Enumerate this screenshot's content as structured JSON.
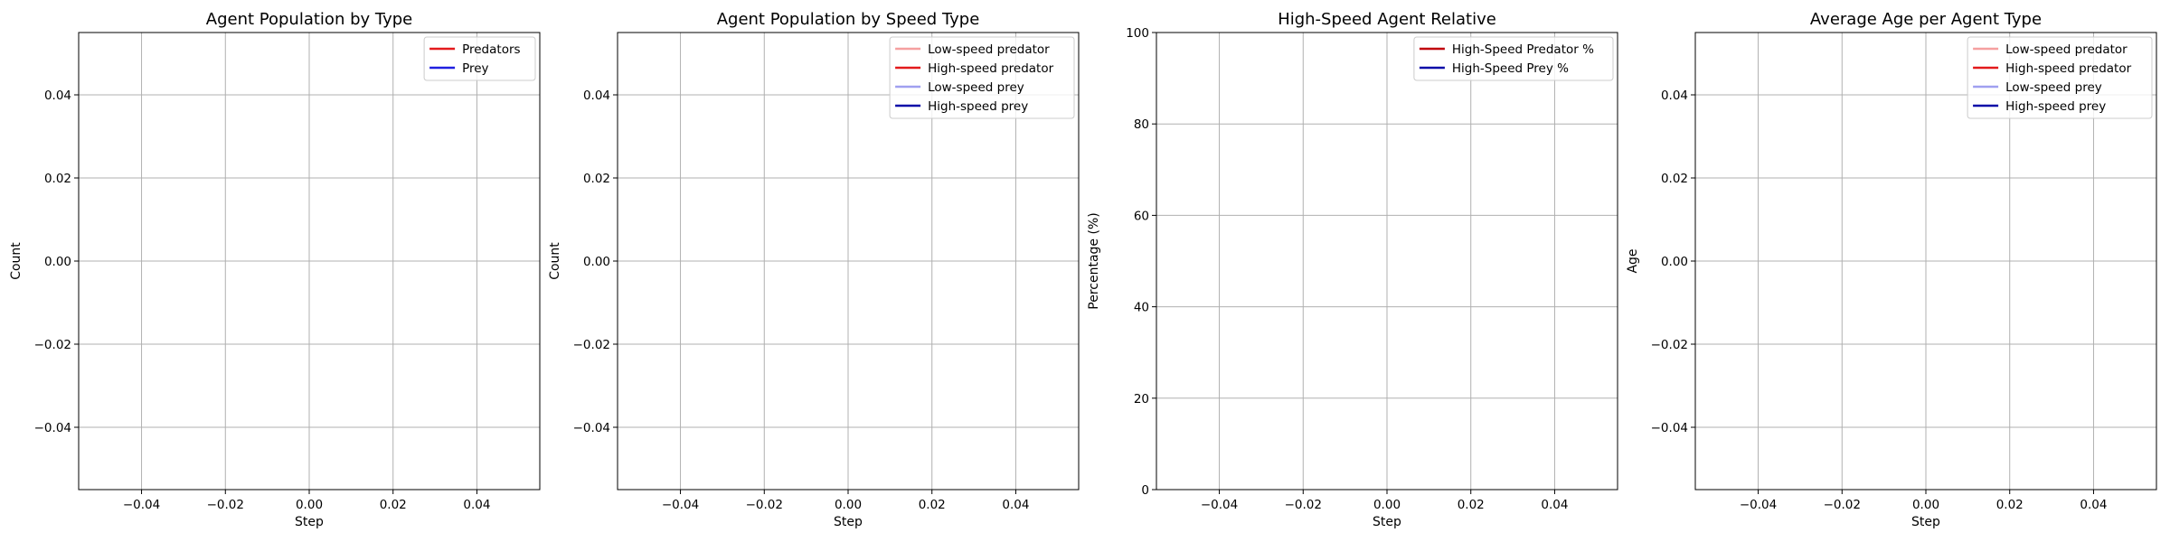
{
  "chart_data": [
    {
      "type": "line",
      "title": "Agent Population by Type",
      "xlabel": "Step",
      "ylabel": "Count",
      "xlim": [
        -0.055,
        0.055
      ],
      "ylim": [
        -0.055,
        0.055
      ],
      "xticks": [
        -0.04,
        -0.02,
        0.0,
        0.02,
        0.04
      ],
      "xtick_labels": [
        "−0.04",
        "−0.02",
        "0.00",
        "0.02",
        "0.04"
      ],
      "yticks": [
        -0.04,
        -0.02,
        0.0,
        0.02,
        0.04
      ],
      "ytick_labels": [
        "−0.04",
        "−0.02",
        "0.00",
        "0.02",
        "0.04"
      ],
      "grid": true,
      "legend_position": "top-right",
      "series": [
        {
          "name": "Predators",
          "color": "#e31a1c",
          "x": [],
          "y": []
        },
        {
          "name": "Prey",
          "color": "#1f1fe0",
          "x": [],
          "y": []
        }
      ]
    },
    {
      "type": "line",
      "title": "Agent Population by Speed Type",
      "xlabel": "Step",
      "ylabel": "Count",
      "xlim": [
        -0.055,
        0.055
      ],
      "ylim": [
        -0.055,
        0.055
      ],
      "xticks": [
        -0.04,
        -0.02,
        0.0,
        0.02,
        0.04
      ],
      "xtick_labels": [
        "−0.04",
        "−0.02",
        "0.00",
        "0.02",
        "0.04"
      ],
      "yticks": [
        -0.04,
        -0.02,
        0.0,
        0.02,
        0.04
      ],
      "ytick_labels": [
        "−0.04",
        "−0.02",
        "0.00",
        "0.02",
        "0.04"
      ],
      "grid": true,
      "legend_position": "top-right",
      "series": [
        {
          "name": "Low-speed predator",
          "color": "#f5a0a0",
          "x": [],
          "y": []
        },
        {
          "name": "High-speed predator",
          "color": "#e31a1c",
          "x": [],
          "y": []
        },
        {
          "name": "Low-speed prey",
          "color": "#a0a0f0",
          "x": [],
          "y": []
        },
        {
          "name": "High-speed prey",
          "color": "#0a0aa8",
          "x": [],
          "y": []
        }
      ]
    },
    {
      "type": "line",
      "title": "High-Speed Agent Relative",
      "xlabel": "Step",
      "ylabel": "Percentage (%)",
      "xlim": [
        -0.055,
        0.055
      ],
      "ylim": [
        0,
        100
      ],
      "xticks": [
        -0.04,
        -0.02,
        0.0,
        0.02,
        0.04
      ],
      "xtick_labels": [
        "−0.04",
        "−0.02",
        "0.00",
        "0.02",
        "0.04"
      ],
      "yticks": [
        0,
        20,
        40,
        60,
        80,
        100
      ],
      "ytick_labels": [
        "0",
        "20",
        "40",
        "60",
        "80",
        "100"
      ],
      "grid": true,
      "legend_position": "top-right",
      "series": [
        {
          "name": "High-Speed Predator %",
          "color": "#c0000c",
          "x": [],
          "y": []
        },
        {
          "name": "High-Speed Prey %",
          "color": "#0a0aa8",
          "x": [],
          "y": []
        }
      ]
    },
    {
      "type": "line",
      "title": "Average Age per Agent Type",
      "xlabel": "Step",
      "ylabel": "Age",
      "xlim": [
        -0.055,
        0.055
      ],
      "ylim": [
        -0.055,
        0.055
      ],
      "xticks": [
        -0.04,
        -0.02,
        0.0,
        0.02,
        0.04
      ],
      "xtick_labels": [
        "−0.04",
        "−0.02",
        "0.00",
        "0.02",
        "0.04"
      ],
      "yticks": [
        -0.04,
        -0.02,
        0.0,
        0.02,
        0.04
      ],
      "ytick_labels": [
        "−0.04",
        "−0.02",
        "0.00",
        "0.02",
        "0.04"
      ],
      "grid": true,
      "legend_position": "top-right",
      "series": [
        {
          "name": "Low-speed predator",
          "color": "#f5a0a0",
          "x": [],
          "y": []
        },
        {
          "name": "High-speed predator",
          "color": "#e31a1c",
          "x": [],
          "y": []
        },
        {
          "name": "Low-speed prey",
          "color": "#a0a0f0",
          "x": [],
          "y": []
        },
        {
          "name": "High-speed prey",
          "color": "#0a0aa8",
          "x": [],
          "y": []
        }
      ]
    }
  ]
}
